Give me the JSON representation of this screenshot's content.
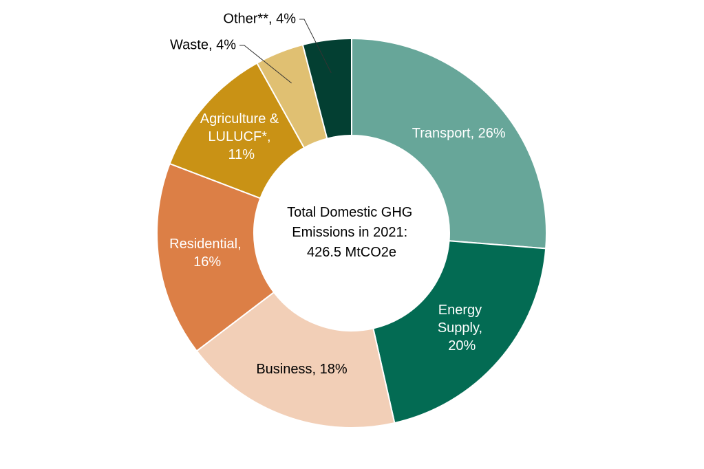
{
  "chart_data": {
    "type": "donut",
    "center_label": "Total Domestic GHG Emissions in 2021: 426.5 MtCO2e",
    "values": [
      26,
      20,
      18,
      16,
      11,
      4,
      4
    ],
    "value_labels": [
      "Transport, 26%",
      "Energy Supply, 20%",
      "Business, 18%",
      "Residential, 16%",
      "Agriculture & LULUCF*, 11%",
      "Waste, 4%",
      "Other**, 4%"
    ],
    "colors": [
      "#67a699",
      "#036b53",
      "#f2cfb7",
      "#dc7f46",
      "#c99215",
      "#e0c072",
      "#033f32"
    ]
  }
}
